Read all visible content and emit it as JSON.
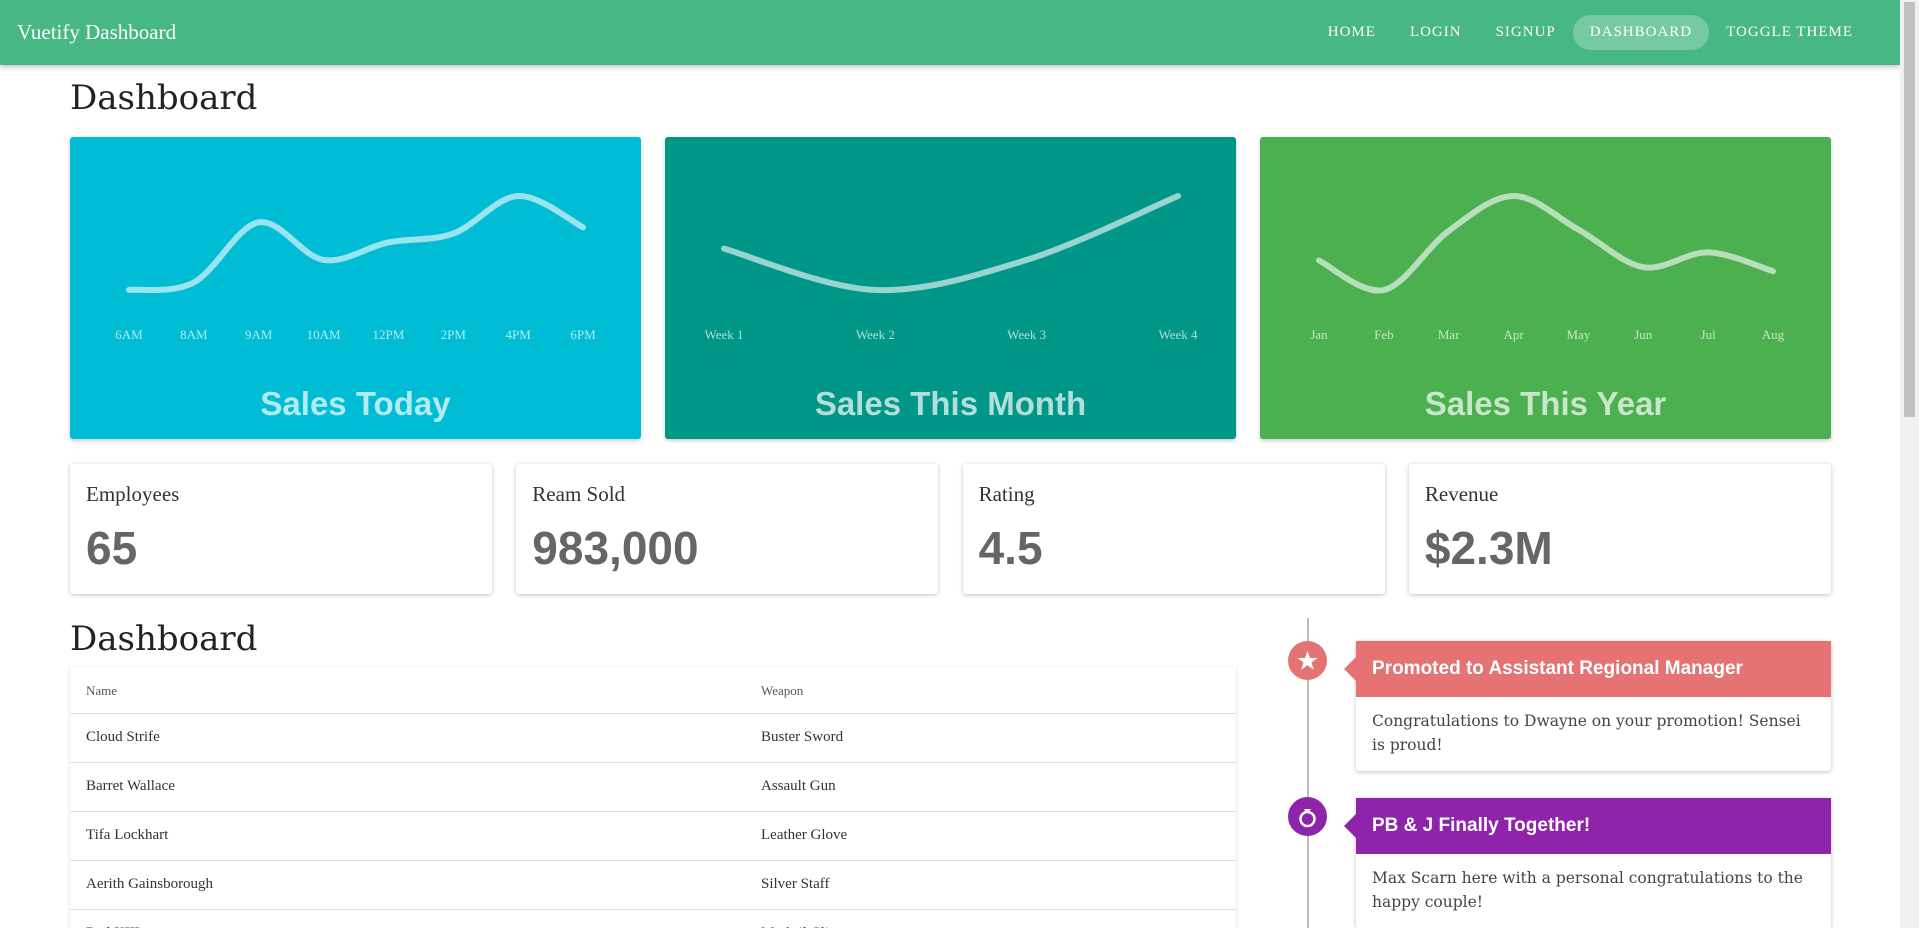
{
  "nav": {
    "brand": "Vuetify Dashboard",
    "links": [
      "HOME",
      "LOGIN",
      "SIGNUP",
      "DASHBOARD",
      "TOGGLE THEME"
    ]
  },
  "page_title": "Dashboard",
  "sparklines": [
    {
      "title": "Sales Today",
      "color": "#00bcd4",
      "tint": "#b2ebf2",
      "labels": [
        "6AM",
        "8AM",
        "9AM",
        "10AM",
        "12PM",
        "2PM",
        "4PM",
        "6PM"
      ],
      "values": [
        3,
        9,
        57,
        27,
        41,
        48,
        78,
        53
      ]
    },
    {
      "title": "Sales This Month",
      "color": "#009688",
      "tint": "#b2dfdb",
      "labels": [
        "Week 1",
        "Week 2",
        "Week 3",
        "Week 4"
      ],
      "values": [
        38,
        5,
        29,
        80
      ]
    },
    {
      "title": "Sales This Year",
      "color": "#4caf50",
      "tint": "#c8e6c9",
      "labels": [
        "Jan",
        "Feb",
        "Mar",
        "Apr",
        "May",
        "Jun",
        "Jul",
        "Aug"
      ],
      "values": [
        30,
        8,
        52,
        78,
        53,
        25,
        36,
        22
      ]
    }
  ],
  "stats": [
    {
      "label": "Employees",
      "value": "65"
    },
    {
      "label": "Ream Sold",
      "value": "983,000"
    },
    {
      "label": "Rating",
      "value": "4.5"
    },
    {
      "label": "Revenue",
      "value": "$2.3M"
    }
  ],
  "table": {
    "title": "Dashboard",
    "headers": [
      "Name",
      "Weapon"
    ],
    "rows": [
      [
        "Cloud Strife",
        "Buster Sword"
      ],
      [
        "Barret Wallace",
        "Assault Gun"
      ],
      [
        "Tifa Lockhart",
        "Leather Glove"
      ],
      [
        "Aerith Gainsborough",
        "Silver Staff"
      ],
      [
        "Red XIII",
        "Mythril Clip"
      ]
    ]
  },
  "timeline": [
    {
      "title": "Promoted to Assistant Regional Manager",
      "text": "Congratulations to Dwayne on your promotion! Sensei is proud!",
      "color": "#e57373"
    },
    {
      "title": "PB & J Finally Together!",
      "text": "Max Scarn here with a personal congratulations to the happy couple!",
      "color": "#8e24aa"
    }
  ]
}
